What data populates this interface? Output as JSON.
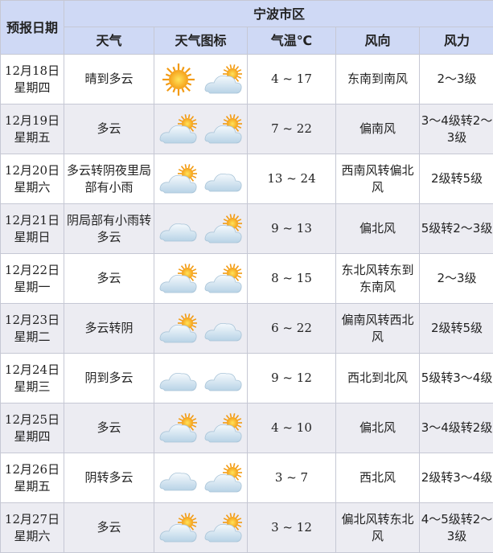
{
  "header": {
    "date_col": "预报日期",
    "region": "宁波市区",
    "cols": [
      "天气",
      "天气图标",
      "气温℃",
      "风向",
      "风力"
    ]
  },
  "colors": {
    "header_bg": "#cfd9f5",
    "alt_row_bg": "#ececf2",
    "border": "#c6c8d4"
  },
  "rows": [
    {
      "date": "12月18日",
      "weekday": "星期四",
      "weather": "晴到多云",
      "icons": [
        "sun-icon",
        "partly-cloudy-icon"
      ],
      "temp": "4 ~ 17",
      "wind_dir": "东南到南风",
      "wind_force": "2～3级"
    },
    {
      "date": "12月19日",
      "weekday": "星期五",
      "weather": "多云",
      "icons": [
        "partly-cloudy-icon",
        "partly-cloudy-icon"
      ],
      "temp": "7 ~ 22",
      "wind_dir": "偏南风",
      "wind_force": "3～4级转2～3级"
    },
    {
      "date": "12月20日",
      "weekday": "星期六",
      "weather": "多云转阴夜里局部有小雨",
      "icons": [
        "partly-cloudy-icon",
        "cloud-icon"
      ],
      "temp": "13 ~ 24",
      "wind_dir": "西南风转偏北风",
      "wind_force": "2级转5级"
    },
    {
      "date": "12月21日",
      "weekday": "星期日",
      "weather": "阴局部有小雨转多云",
      "icons": [
        "cloud-icon",
        "partly-cloudy-icon"
      ],
      "temp": "9 ~ 13",
      "wind_dir": "偏北风",
      "wind_force": "5级转2～3级"
    },
    {
      "date": "12月22日",
      "weekday": "星期一",
      "weather": "多云",
      "icons": [
        "partly-cloudy-icon",
        "partly-cloudy-icon"
      ],
      "temp": "8 ~ 15",
      "wind_dir": "东北风转东到东南风",
      "wind_force": "2～3级"
    },
    {
      "date": "12月23日",
      "weekday": "星期二",
      "weather": "多云转阴",
      "icons": [
        "partly-cloudy-icon",
        "cloud-icon"
      ],
      "temp": "6 ~ 22",
      "wind_dir": "偏南风转西北风",
      "wind_force": "2级转5级"
    },
    {
      "date": "12月24日",
      "weekday": "星期三",
      "weather": "阴到多云",
      "icons": [
        "cloud-icon",
        "cloud-icon"
      ],
      "temp": "9 ~ 12",
      "wind_dir": "西北到北风",
      "wind_force": "5级转3～4级"
    },
    {
      "date": "12月25日",
      "weekday": "星期四",
      "weather": "多云",
      "icons": [
        "partly-cloudy-icon",
        "partly-cloudy-icon"
      ],
      "temp": "4 ~ 10",
      "wind_dir": "偏北风",
      "wind_force": "3～4级转2级"
    },
    {
      "date": "12月26日",
      "weekday": "星期五",
      "weather": "阴转多云",
      "icons": [
        "cloud-icon",
        "partly-cloudy-icon"
      ],
      "temp": "3 ~ 7",
      "wind_dir": "西北风",
      "wind_force": "2级转3～4级"
    },
    {
      "date": "12月27日",
      "weekday": "星期六",
      "weather": "多云",
      "icons": [
        "partly-cloudy-icon",
        "partly-cloudy-icon"
      ],
      "temp": "3 ~ 12",
      "wind_dir": "偏北风转东北风",
      "wind_force": "4～5级转2～3级"
    }
  ]
}
